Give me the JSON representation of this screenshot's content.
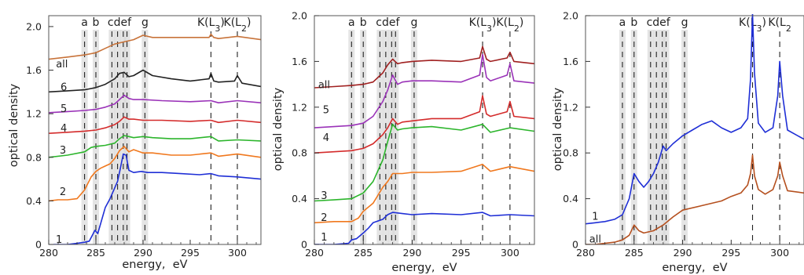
{
  "chart_data": [
    {
      "type": "line",
      "xlabel": "energy,  eV",
      "ylabel": "optical density",
      "xlim": [
        280,
        302.5
      ],
      "ylim": [
        0,
        2.1
      ],
      "xticks": [
        280,
        285,
        290,
        295,
        300
      ],
      "yticks": [
        0,
        0.4,
        0.8,
        1.2,
        1.6,
        2.0
      ],
      "ytick_labels": [
        "0",
        "0.4",
        "0.8",
        "1.2",
        "1.6",
        "2.0"
      ],
      "grid": false,
      "reference_lines": [
        {
          "label": "a",
          "x": 283.8,
          "shaded": true
        },
        {
          "label": "b",
          "x": 285.0,
          "shaded": true
        },
        {
          "label": "",
          "x": 286.7,
          "shaded": true
        },
        {
          "label": "",
          "x": 287.3,
          "shaded": true
        },
        {
          "label": "cdef",
          "x": 287.9,
          "shaded": true
        },
        {
          "label": "",
          "x": 288.3,
          "shaded": true
        },
        {
          "label": "g",
          "x": 290.2,
          "shaded": true
        },
        {
          "label": "K(L3)",
          "x": 297.2,
          "shaded": false
        },
        {
          "label": "K(L2)",
          "x": 300.0,
          "shaded": false
        }
      ],
      "series": [
        {
          "name": "1",
          "color": "#1f2fd6",
          "label_pos": [
            281.1,
            0.05
          ],
          "x": [
            280.5,
            282,
            283,
            283.8,
            284.3,
            284.6,
            284.9,
            285.2,
            285.6,
            286.0,
            286.5,
            287.0,
            287.3,
            287.6,
            287.9,
            288.2,
            288.5,
            289.0,
            289.8,
            290.5,
            292,
            294,
            296,
            297.2,
            298,
            300,
            302.5
          ],
          "y": [
            0.0,
            0.0,
            0.01,
            0.02,
            0.03,
            0.08,
            0.13,
            0.1,
            0.22,
            0.34,
            0.42,
            0.52,
            0.58,
            0.7,
            0.83,
            0.82,
            0.68,
            0.66,
            0.67,
            0.66,
            0.66,
            0.65,
            0.64,
            0.65,
            0.63,
            0.62,
            0.6
          ]
        },
        {
          "name": "2",
          "color": "#f0781e",
          "label_pos": [
            281.5,
            0.49
          ],
          "x": [
            280,
            281,
            282,
            283,
            283.8,
            284.5,
            285.0,
            285.5,
            286,
            286.5,
            287,
            287.5,
            288.0,
            288.5,
            289,
            290,
            291,
            293,
            295,
            297.2,
            298,
            300,
            302.5
          ],
          "y": [
            0.4,
            0.41,
            0.41,
            0.42,
            0.5,
            0.62,
            0.67,
            0.7,
            0.72,
            0.74,
            0.79,
            0.86,
            0.9,
            0.85,
            0.87,
            0.84,
            0.84,
            0.82,
            0.82,
            0.84,
            0.81,
            0.83,
            0.8
          ]
        },
        {
          "name": "3",
          "color": "#2cb52c",
          "label_pos": [
            281.5,
            0.87
          ],
          "x": [
            280,
            282,
            283.8,
            284.5,
            285,
            286,
            287,
            287.5,
            288,
            288.5,
            289,
            290,
            291,
            293,
            295,
            297.2,
            298,
            300,
            302.5
          ],
          "y": [
            0.8,
            0.82,
            0.85,
            0.89,
            0.9,
            0.91,
            0.93,
            0.97,
            1.0,
            0.99,
            0.98,
            0.99,
            0.98,
            0.97,
            0.97,
            0.99,
            0.95,
            0.96,
            0.95
          ]
        },
        {
          "name": "4",
          "color": "#d42b2b",
          "label_pos": [
            281.6,
            1.07
          ],
          "x": [
            280,
            282,
            283.8,
            285,
            286,
            287,
            287.5,
            288,
            288.5,
            289,
            290,
            292,
            295,
            297.2,
            298,
            300,
            302.5
          ],
          "y": [
            1.02,
            1.03,
            1.04,
            1.05,
            1.07,
            1.1,
            1.13,
            1.17,
            1.15,
            1.15,
            1.14,
            1.14,
            1.13,
            1.14,
            1.12,
            1.14,
            1.12
          ]
        },
        {
          "name": "5",
          "color": "#9a32b8",
          "label_pos": [
            281.6,
            1.25
          ],
          "x": [
            280,
            282,
            283.8,
            285,
            286,
            287,
            287.5,
            288,
            288.5,
            289,
            290,
            292,
            295,
            297.2,
            298,
            300,
            302.5
          ],
          "y": [
            1.21,
            1.22,
            1.23,
            1.24,
            1.26,
            1.29,
            1.33,
            1.37,
            1.34,
            1.33,
            1.33,
            1.32,
            1.31,
            1.32,
            1.3,
            1.32,
            1.3
          ]
        },
        {
          "name": "6",
          "color": "#222222",
          "label_pos": [
            281.6,
            1.45
          ],
          "x": [
            280,
            282,
            283.8,
            285,
            286,
            287,
            287.5,
            288,
            288.5,
            289,
            290,
            291,
            293,
            295,
            297.0,
            297.2,
            297.5,
            298,
            299.7,
            300,
            300.5,
            302.5
          ],
          "y": [
            1.4,
            1.41,
            1.42,
            1.44,
            1.47,
            1.52,
            1.57,
            1.58,
            1.54,
            1.55,
            1.6,
            1.55,
            1.52,
            1.5,
            1.52,
            1.57,
            1.5,
            1.49,
            1.5,
            1.55,
            1.48,
            1.45
          ]
        },
        {
          "name": "all",
          "color": "#c8733a",
          "label_pos": [
            281.4,
            1.66
          ],
          "x": [
            280,
            282,
            283.8,
            285,
            286,
            287,
            288,
            289,
            290,
            291,
            293,
            295,
            297.0,
            297.2,
            297.5,
            298,
            300,
            302.5
          ],
          "y": [
            1.7,
            1.72,
            1.74,
            1.76,
            1.8,
            1.84,
            1.86,
            1.88,
            1.92,
            1.9,
            1.9,
            1.9,
            1.9,
            1.93,
            1.9,
            1.89,
            1.91,
            1.88
          ]
        }
      ]
    },
    {
      "type": "line",
      "xlabel": "energy,  eV",
      "ylabel": "optical density",
      "xlim": [
        280,
        302.5
      ],
      "ylim": [
        0,
        2.0
      ],
      "xticks": [
        280,
        285,
        290,
        295,
        300
      ],
      "yticks": [
        0,
        0.4,
        0.8,
        1.2,
        1.6,
        2.0
      ],
      "ytick_labels": [
        "0",
        "0.4",
        "0.8",
        "1.2",
        "1.6",
        "2.0"
      ],
      "grid": false,
      "reference_lines": [
        {
          "label": "a",
          "x": 283.8,
          "shaded": true
        },
        {
          "label": "b",
          "x": 285.0,
          "shaded": true
        },
        {
          "label": "",
          "x": 286.7,
          "shaded": true
        },
        {
          "label": "",
          "x": 287.3,
          "shaded": true
        },
        {
          "label": "cdef",
          "x": 287.9,
          "shaded": true
        },
        {
          "label": "",
          "x": 288.3,
          "shaded": true
        },
        {
          "label": "g",
          "x": 290.2,
          "shaded": true
        },
        {
          "label": "K(L3)",
          "x": 297.2,
          "shaded": false
        },
        {
          "label": "K(L2)",
          "x": 300.0,
          "shaded": false
        }
      ],
      "series": [
        {
          "name": "1",
          "color": "#1f2fd6",
          "label_pos": [
            281.0,
            0.07
          ],
          "x": [
            280,
            282,
            283.5,
            283.8,
            284.3,
            285.0,
            285.5,
            286,
            287,
            287.5,
            288,
            289,
            290,
            292,
            295,
            297.2,
            298,
            300,
            302.5
          ],
          "y": [
            0.0,
            0.0,
            0.01,
            0.04,
            0.05,
            0.1,
            0.14,
            0.19,
            0.22,
            0.26,
            0.28,
            0.27,
            0.26,
            0.27,
            0.26,
            0.28,
            0.25,
            0.26,
            0.25
          ]
        },
        {
          "name": "2",
          "color": "#f0781e",
          "label_pos": [
            281.0,
            0.24
          ],
          "x": [
            280,
            282,
            283.8,
            284.5,
            285.0,
            286,
            287,
            287.5,
            288,
            289,
            290,
            292,
            295,
            297.2,
            298,
            300,
            302.5
          ],
          "y": [
            0.19,
            0.2,
            0.2,
            0.23,
            0.29,
            0.36,
            0.5,
            0.55,
            0.62,
            0.62,
            0.63,
            0.63,
            0.64,
            0.7,
            0.64,
            0.68,
            0.64
          ]
        },
        {
          "name": "3",
          "color": "#2cb52c",
          "label_pos": [
            281.0,
            0.43
          ],
          "x": [
            280,
            282,
            283.8,
            285,
            286,
            287,
            287.5,
            288,
            288.5,
            289,
            290,
            292,
            295,
            297.2,
            298,
            300,
            302.5
          ],
          "y": [
            0.38,
            0.39,
            0.4,
            0.45,
            0.55,
            0.74,
            0.9,
            1.05,
            1.0,
            1.01,
            1.02,
            1.03,
            1.0,
            1.05,
            0.98,
            1.02,
            0.99
          ]
        },
        {
          "name": "4",
          "color": "#d42b2b",
          "label_pos": [
            281.2,
            0.94
          ],
          "x": [
            280,
            282,
            283.8,
            285,
            286,
            287,
            287.5,
            288,
            288.5,
            289,
            290,
            292,
            295,
            296.9,
            297.2,
            297.6,
            298,
            299.7,
            300,
            300.4,
            302.5
          ],
          "y": [
            0.8,
            0.81,
            0.82,
            0.84,
            0.88,
            0.96,
            1.02,
            1.1,
            1.05,
            1.07,
            1.08,
            1.1,
            1.1,
            1.16,
            1.3,
            1.14,
            1.12,
            1.16,
            1.25,
            1.12,
            1.1
          ]
        },
        {
          "name": "5",
          "color": "#9a32b8",
          "label_pos": [
            281.2,
            1.18
          ],
          "x": [
            280,
            282,
            283.8,
            285,
            286,
            287,
            287.5,
            288,
            288.5,
            289,
            290,
            292,
            295,
            296.9,
            297.2,
            297.6,
            298,
            299.7,
            300,
            300.4,
            302.5
          ],
          "y": [
            1.02,
            1.03,
            1.04,
            1.06,
            1.12,
            1.25,
            1.35,
            1.48,
            1.4,
            1.42,
            1.43,
            1.43,
            1.42,
            1.48,
            1.66,
            1.46,
            1.43,
            1.48,
            1.58,
            1.43,
            1.41
          ]
        },
        {
          "name": "all",
          "color": "#a02020",
          "label_pos": [
            281.0,
            1.4
          ],
          "x": [
            280,
            282,
            283.8,
            285,
            286,
            287,
            287.5,
            288,
            288.5,
            289,
            290,
            292,
            295,
            296.9,
            297.2,
            297.6,
            298,
            299.7,
            300,
            300.4,
            302.5
          ],
          "y": [
            1.37,
            1.38,
            1.39,
            1.4,
            1.42,
            1.5,
            1.57,
            1.62,
            1.58,
            1.59,
            1.6,
            1.61,
            1.6,
            1.63,
            1.73,
            1.62,
            1.6,
            1.63,
            1.68,
            1.6,
            1.58
          ]
        }
      ]
    },
    {
      "type": "line",
      "xlabel": "energy,  eV",
      "ylabel": "optical density",
      "xlim": [
        280,
        302.5
      ],
      "ylim": [
        0,
        2.0
      ],
      "xticks": [
        280,
        285,
        290,
        295,
        300
      ],
      "yticks": [
        0,
        0.4,
        0.8,
        1.2,
        1.6,
        2.0
      ],
      "ytick_labels": [
        "0",
        "0.4",
        "0.8",
        "1.2",
        "1.6",
        "2.0"
      ],
      "grid": false,
      "reference_lines": [
        {
          "label": "a",
          "x": 283.8,
          "shaded": true
        },
        {
          "label": "b",
          "x": 285.0,
          "shaded": true
        },
        {
          "label": "",
          "x": 286.7,
          "shaded": true
        },
        {
          "label": "",
          "x": 287.3,
          "shaded": true
        },
        {
          "label": "cdef",
          "x": 287.9,
          "shaded": true
        },
        {
          "label": "",
          "x": 288.3,
          "shaded": true
        },
        {
          "label": "g",
          "x": 290.2,
          "shaded": true
        },
        {
          "label": "K(L3)",
          "x": 297.2,
          "shaded": false
        },
        {
          "label": "K(L2",
          "x": 300.0,
          "shaded": false
        }
      ],
      "series": [
        {
          "name": "1",
          "color": "#1f2fd6",
          "label_pos": [
            281.0,
            0.25
          ],
          "x": [
            280,
            281,
            282,
            283,
            283.8,
            284.5,
            285.0,
            285.5,
            286,
            286.5,
            287,
            287.5,
            288,
            288.3,
            289,
            290,
            291,
            292,
            293,
            294,
            295,
            296,
            296.7,
            297.0,
            297.2,
            297.4,
            297.8,
            298.5,
            299.3,
            299.8,
            300.0,
            300.3,
            300.8,
            302.5
          ],
          "y": [
            0.18,
            0.19,
            0.2,
            0.22,
            0.26,
            0.4,
            0.62,
            0.55,
            0.5,
            0.55,
            0.62,
            0.72,
            0.86,
            0.82,
            0.88,
            0.95,
            1.0,
            1.05,
            1.08,
            1.02,
            0.98,
            1.02,
            1.1,
            1.45,
            2.02,
            1.5,
            1.06,
            0.98,
            1.02,
            1.3,
            1.6,
            1.3,
            1.0,
            0.92
          ]
        },
        {
          "name": "all",
          "color": "#b5501f",
          "label_pos": [
            281.0,
            0.05
          ],
          "x": [
            280,
            281,
            282,
            283,
            283.8,
            284.5,
            285.0,
            285.5,
            286,
            287,
            288,
            289,
            290,
            292,
            294,
            295,
            296,
            296.7,
            297.0,
            297.2,
            297.4,
            297.8,
            298.5,
            299.3,
            299.8,
            300.0,
            300.3,
            300.8,
            302.5
          ],
          "y": [
            0.0,
            0.0,
            0.01,
            0.02,
            0.04,
            0.08,
            0.17,
            0.12,
            0.1,
            0.12,
            0.17,
            0.24,
            0.3,
            0.34,
            0.38,
            0.42,
            0.45,
            0.52,
            0.62,
            0.78,
            0.6,
            0.48,
            0.44,
            0.48,
            0.6,
            0.72,
            0.6,
            0.47,
            0.45
          ]
        }
      ]
    }
  ]
}
